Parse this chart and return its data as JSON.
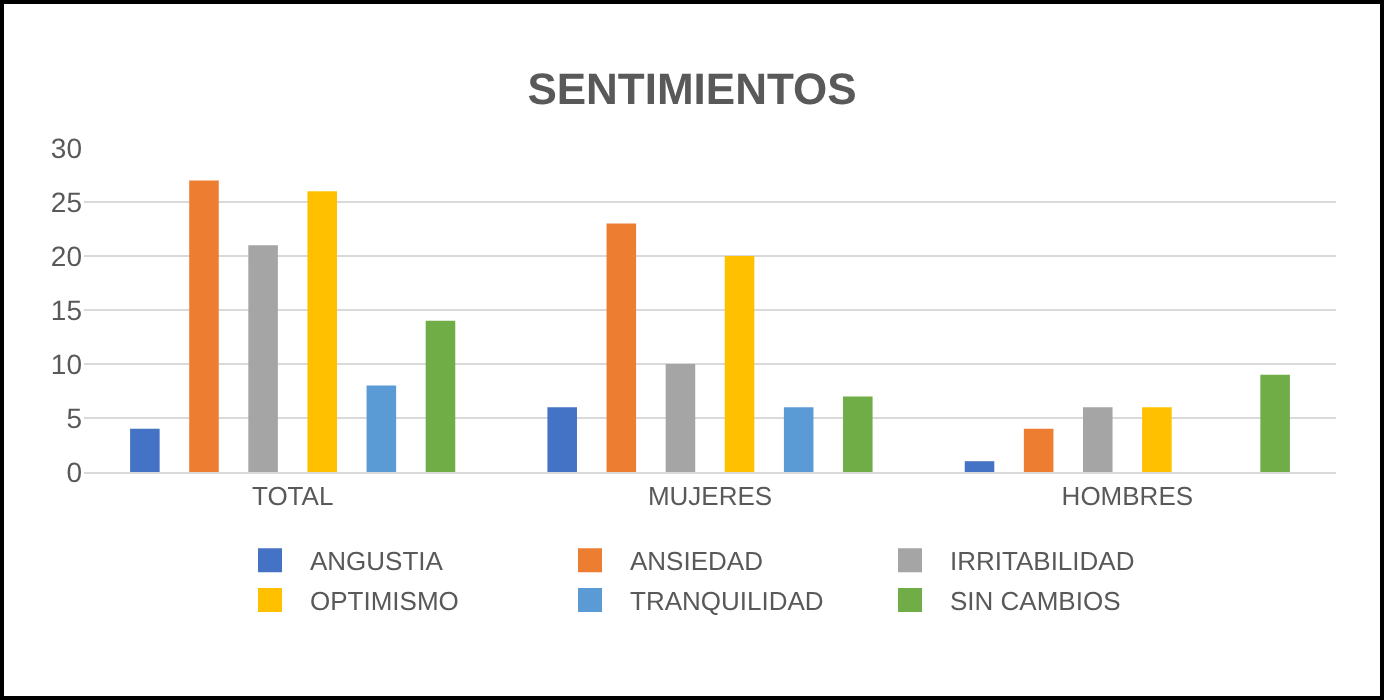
{
  "chart_data": {
    "type": "bar",
    "title": "SENTIMIENTOS",
    "categories": [
      "TOTAL",
      "MUJERES",
      "HOMBRES"
    ],
    "series": [
      {
        "name": "ANGUSTIA",
        "color": "#4472c4",
        "values": [
          4,
          6,
          1
        ]
      },
      {
        "name": "ANSIEDAD",
        "color": "#ed7d31",
        "values": [
          27,
          23,
          4
        ]
      },
      {
        "name": "IRRITABILIDAD",
        "color": "#a5a5a5",
        "values": [
          21,
          10,
          6
        ]
      },
      {
        "name": "OPTIMISMO",
        "color": "#ffc000",
        "values": [
          26,
          20,
          6
        ]
      },
      {
        "name": "TRANQUILIDAD",
        "color": "#5b9bd5",
        "values": [
          8,
          6,
          0
        ]
      },
      {
        "name": "SIN CAMBIOS",
        "color": "#70ad47",
        "values": [
          14,
          7,
          9
        ]
      }
    ],
    "ylim": [
      0,
      30
    ],
    "yticks": [
      0,
      5,
      10,
      15,
      20,
      25,
      30
    ],
    "grid": "y",
    "legend": "bottom"
  }
}
